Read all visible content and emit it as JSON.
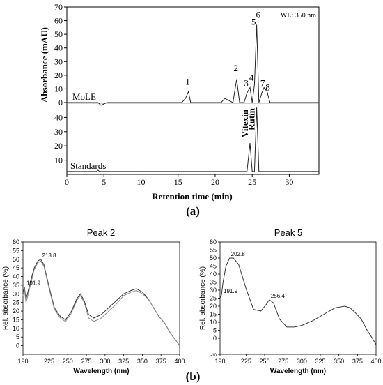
{
  "panel_a_label": "(a)",
  "panel_b_label": "(b)",
  "chart_data": [
    {
      "type": "line",
      "ylabel": "Absorbance (mAU)",
      "xlabel": "Retention time (min)",
      "xlim": [
        0,
        34
      ],
      "x_ticks": [
        0,
        5,
        10,
        15,
        20,
        25,
        30
      ],
      "ylim_top": [
        0,
        70
      ],
      "y_ticks_top": [
        0,
        10,
        20,
        30,
        40,
        50,
        60,
        70
      ],
      "ylim_bottom": [
        0,
        50
      ],
      "y_ticks_bottom": [
        10,
        20,
        30,
        40
      ],
      "wavelength_note": "WL: 350 nm",
      "series": [
        {
          "name": "MoLE",
          "x": [
            0,
            4.2,
            4.6,
            5.4,
            5.6,
            15.5,
            16.0,
            16.4,
            16.7,
            20.8,
            21.3,
            22.4,
            22.9,
            23.3,
            23.9,
            24.3,
            24.7,
            25.0,
            25.3,
            25.6,
            25.9,
            26.3,
            26.6,
            27.0,
            27.4,
            28.0,
            34
          ],
          "y": [
            0,
            0,
            -2,
            0,
            0,
            0,
            3,
            8,
            0,
            0,
            3,
            0,
            17,
            0,
            0,
            7,
            11,
            0,
            13,
            57,
            0,
            7,
            11,
            8,
            0,
            0,
            0
          ]
        },
        {
          "name": "Standards",
          "x": [
            0,
            4.0,
            4.2,
            4.4,
            24.3,
            24.7,
            25.0,
            25.3,
            25.6,
            25.9,
            34
          ],
          "y": [
            2,
            2,
            3,
            2,
            2,
            22,
            2,
            2,
            47,
            2,
            2
          ]
        }
      ],
      "annotations": [
        {
          "text": "1",
          "x": 16.3,
          "y": 12
        },
        {
          "text": "2",
          "x": 22.8,
          "y": 22
        },
        {
          "text": "3",
          "x": 24.2,
          "y": 11
        },
        {
          "text": "4",
          "x": 24.9,
          "y": 15
        },
        {
          "text": "5",
          "x": 25.2,
          "y": 56
        },
        {
          "text": "6",
          "x": 25.8,
          "y": 61
        },
        {
          "text": "7",
          "x": 26.4,
          "y": 11
        },
        {
          "text": "8",
          "x": 27.1,
          "y": 8
        }
      ],
      "vertical_labels": [
        {
          "text": "Vitexin",
          "x": 24.7
        },
        {
          "text": "Rutin",
          "x": 25.6
        }
      ]
    },
    {
      "type": "line",
      "title": "Peak 2",
      "xlabel": "Wavelength (nm)",
      "ylabel": "Rel. absorbance (%)",
      "xlim": [
        190,
        400
      ],
      "x_ticks": [
        190,
        225,
        250,
        275,
        300,
        325,
        350,
        375,
        400
      ],
      "ylim": [
        -5,
        60
      ],
      "y_ticks": [
        0,
        5,
        10,
        15,
        20,
        25,
        30,
        35,
        40,
        45,
        50,
        55,
        60
      ],
      "series": [
        {
          "name": "",
          "x": [
            190,
            191.9,
            194,
            196,
            200,
            205,
            210,
            213.8,
            218,
            225,
            232,
            240,
            247,
            255,
            262,
            267,
            272,
            278,
            285,
            295,
            305,
            315,
            325,
            335,
            342,
            350,
            358,
            365,
            372,
            380,
            388,
            395,
            400
          ],
          "y": [
            30,
            34,
            27,
            30,
            37,
            45,
            49,
            50,
            47,
            34,
            22,
            17,
            15,
            20,
            27,
            30,
            26,
            18,
            16,
            18,
            22,
            26,
            30,
            32,
            33,
            31,
            27,
            22,
            17,
            13,
            7,
            3,
            0
          ]
        },
        {
          "name": "",
          "x": [
            190,
            191.9,
            194,
            196,
            200,
            205,
            210,
            213.8,
            218,
            225,
            232,
            240,
            247,
            255,
            262,
            267,
            272,
            278,
            285,
            295,
            305,
            315,
            325,
            335,
            342,
            350,
            358,
            365,
            372,
            380,
            388,
            395,
            400
          ],
          "y": [
            29,
            33,
            25,
            28,
            35,
            44,
            48,
            49,
            46,
            33,
            21,
            16,
            14,
            19,
            26,
            29,
            25,
            16,
            14,
            16,
            20,
            24,
            29,
            31,
            32,
            30,
            27,
            22,
            17,
            13,
            7,
            3,
            0
          ]
        }
      ],
      "annotations": [
        {
          "text": "213.8",
          "x": 213.8,
          "y": 50
        },
        {
          "text": "191.9",
          "x": 191.9,
          "y": 34
        }
      ]
    },
    {
      "type": "line",
      "title": "Peak 5",
      "xlabel": "Wavelength (nm)",
      "ylabel": "Rel. absorbance (%)",
      "xlim": [
        190,
        400
      ],
      "x_ticks": [
        190,
        225,
        250,
        275,
        300,
        325,
        350,
        375,
        400
      ],
      "ylim": [
        -10,
        60
      ],
      "y_ticks": [
        -10.0,
        0,
        5,
        10,
        15,
        20,
        25,
        30,
        35,
        40,
        45,
        50,
        55,
        60
      ],
      "series": [
        {
          "name": "",
          "x": [
            190,
            191.9,
            194,
            198,
            202.8,
            208,
            215,
            225,
            235,
            245,
            252,
            256.4,
            262,
            270,
            280,
            290,
            300,
            315,
            330,
            345,
            358,
            365,
            372,
            380,
            388,
            395,
            400
          ],
          "y": [
            25,
            27,
            35,
            45,
            50,
            50,
            46,
            31,
            18,
            17,
            21,
            24,
            22,
            12,
            7,
            7,
            8,
            11,
            15,
            19,
            20,
            19,
            16,
            12,
            5,
            0,
            -4
          ]
        }
      ],
      "annotations": [
        {
          "text": "202.8",
          "x": 202.8,
          "y": 50
        },
        {
          "text": "191.9",
          "x": 191.9,
          "y": 27
        },
        {
          "text": "256.4",
          "x": 256.4,
          "y": 24
        }
      ]
    }
  ]
}
